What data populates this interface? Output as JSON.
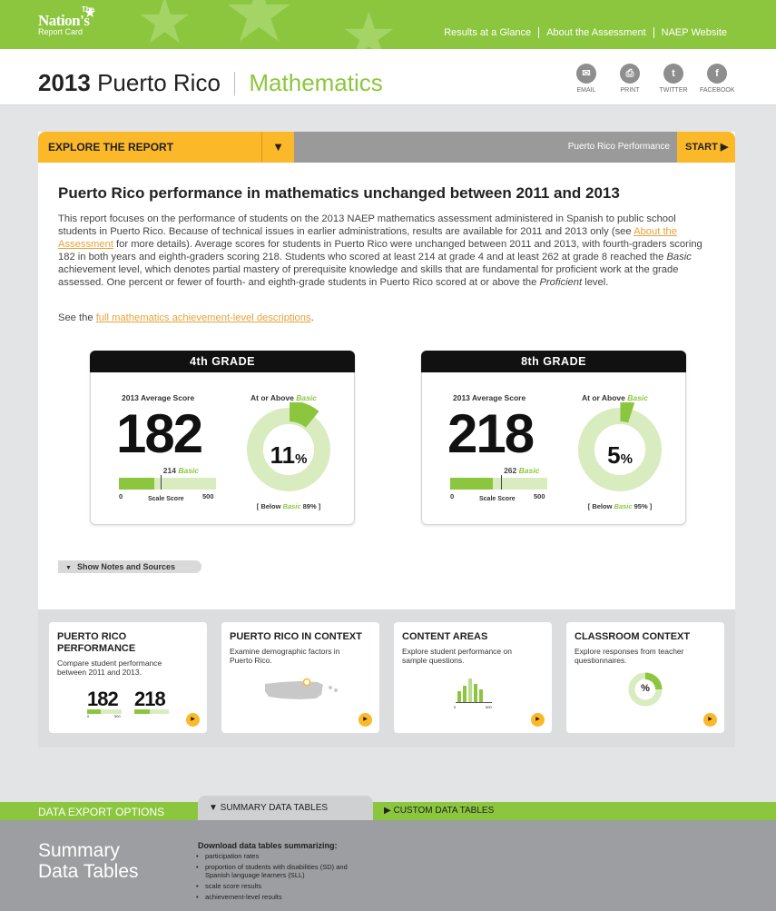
{
  "logo": {
    "line1": "The",
    "line2": "Nation's",
    "line3": "Report Card"
  },
  "nav": [
    "Results at a Glance",
    "About the Assessment",
    "NAEP Website"
  ],
  "title": {
    "year": "2013",
    "state": "Puerto Rico",
    "subject": "Mathematics"
  },
  "share": [
    {
      "label": "EMAIL",
      "glyph": "✉"
    },
    {
      "label": "PRINT",
      "glyph": "⎙"
    },
    {
      "label": "TWITTER",
      "glyph": "t"
    },
    {
      "label": "FACEBOOK",
      "glyph": "f"
    }
  ],
  "explore": {
    "label": "EXPLORE THE REPORT",
    "dropdown": "▼",
    "current": "Puerto Rico Performance",
    "start": "START ▶"
  },
  "headline": "Puerto Rico performance in mathematics unchanged between 2011 and 2013",
  "body": {
    "p1": "This report focuses on the performance of students on the 2013 NAEP mathematics assessment administered in Spanish to public school students in Puerto Rico. Because of technical issues in earlier administrations, results are available for 2011 and 2013 only (see ",
    "link": "About the Assessment",
    "p2": " for more details). Average scores for students in Puerto Rico were unchanged between 2011 and 2013, with fourth-graders scoring 182 in both years and eighth-graders scoring 218. Students who scored at least 214 at grade 4 and at least 262 at grade 8 reached the ",
    "basic": "Basic",
    "p3": " achievement level, which denotes partial mastery of prerequisite knowledge and skills that are fundamental for proficient work at the grade assessed. One percent or fewer of fourth- and eighth-grade students in Puerto Rico scored at or above the ",
    "proficient": "Proficient",
    "p4": " level."
  },
  "see": {
    "prefix": "See the ",
    "link": "full mathematics achievement-level descriptions",
    "suffix": "."
  },
  "grades": [
    {
      "label": "4th GRADE",
      "avg_label": "2013 Average Score",
      "score": "182",
      "score_value": 182,
      "basic_cut_value": 214,
      "basic_cut": "214",
      "basic": "Basic",
      "at_label": "At or Above ",
      "at_basic": "Basic",
      "percent": "11",
      "percent_sign": "%",
      "percent_value": 11,
      "below_prefix": "[ Below ",
      "below_basic": "Basic",
      "below_suffix": " 89% ]",
      "scale_min": "0",
      "scale_max": "500",
      "scale_label": "Scale Score"
    },
    {
      "label": "8th GRADE",
      "avg_label": "2013 Average Score",
      "score": "218",
      "score_value": 218,
      "basic_cut_value": 262,
      "basic_cut": "262",
      "basic": "Basic",
      "at_label": "At or Above ",
      "at_basic": "Basic",
      "percent": "5",
      "percent_sign": "%",
      "percent_value": 5,
      "below_prefix": "[ Below ",
      "below_basic": "Basic",
      "below_suffix": " 95% ]",
      "scale_min": "0",
      "scale_max": "500",
      "scale_label": "Scale Score"
    }
  ],
  "notes": {
    "icon": "▼",
    "label": "Show Notes and Sources"
  },
  "tiles": [
    {
      "title": "PUERTO RICO PERFORMANCE",
      "desc": "Compare student performance between 2011 and 2013.",
      "n1": "182",
      "n2": "218",
      "t0": "0",
      "t500": "500"
    },
    {
      "title": "PUERTO RICO IN CONTEXT",
      "desc": "Examine demographic factors in Puerto Rico."
    },
    {
      "title": "CONTENT AREAS",
      "desc": "Explore student performance on sample questions.",
      "t0": "0",
      "t500": "500"
    },
    {
      "title": "CLASSROOM CONTEXT",
      "desc": "Explore responses from teacher questionnaires.",
      "pct": "%"
    }
  ],
  "play_icon": "▶",
  "footer": {
    "export": "DATA EXPORT OPTIONS",
    "summary_tab": "▼ SUMMARY DATA TABLES",
    "custom_tab": "▶  CUSTOM DATA TABLES",
    "heading1": "Summary",
    "heading2": "Data Tables",
    "download": "Download data tables summarizing:",
    "items": [
      "participation rates",
      "proportion of students with disabilities (SD) and Spanish language learners (SLL)",
      "scale score results",
      "achievement-level results"
    ]
  },
  "colors": {
    "green": "#8cc63f",
    "lightgreen": "#d8ecc0",
    "yellow": "#fbb829",
    "grey": "#9a9a9a"
  }
}
